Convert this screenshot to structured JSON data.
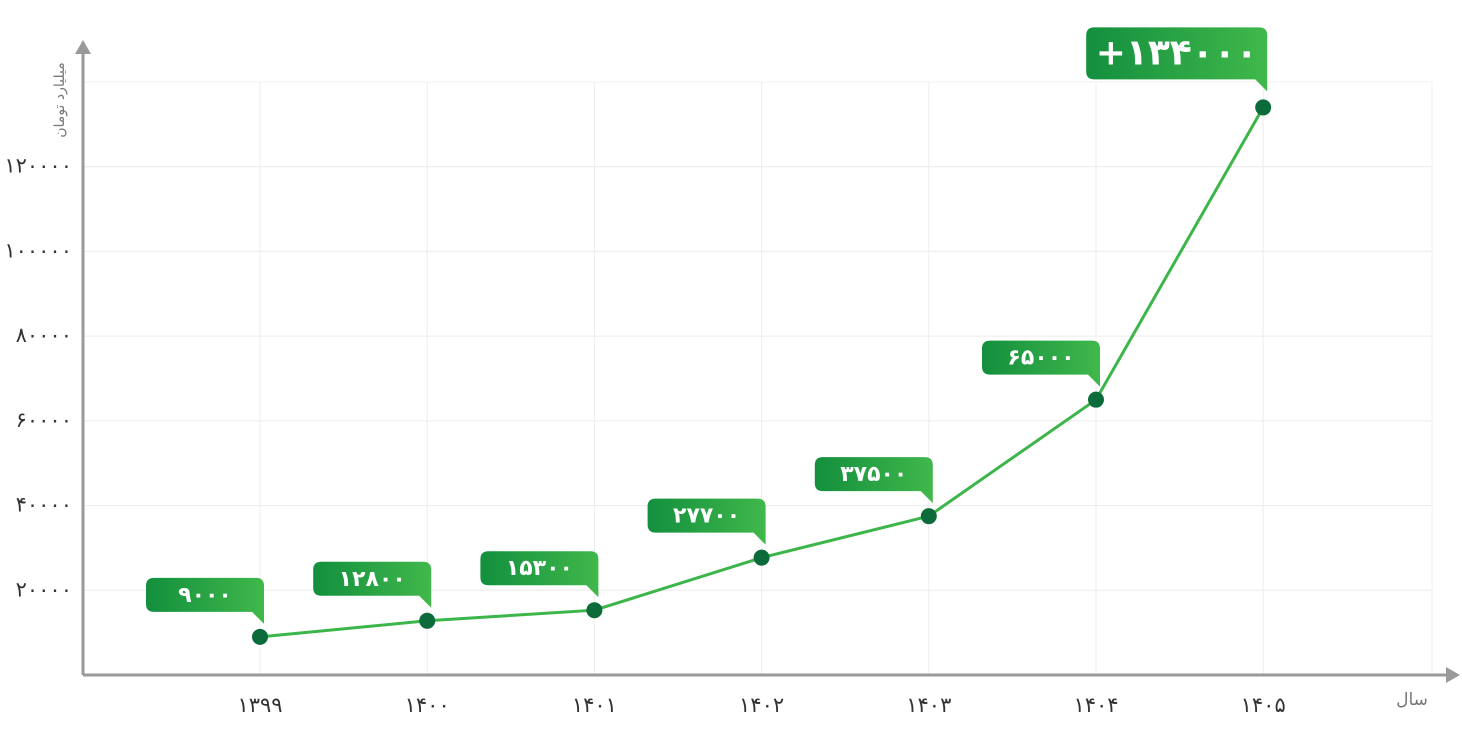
{
  "chart_data": {
    "type": "line",
    "y_axis_label": "میلیارد تومان",
    "x_axis_label": "سال",
    "categories": [
      "۱۳۹۹",
      "۱۴۰۰",
      "۱۴۰۱",
      "۱۴۰۲",
      "۱۴۰۳",
      "۱۴۰۴",
      "۱۴۰۵"
    ],
    "values": [
      9000,
      12800,
      15300,
      27700,
      37500,
      65000,
      134000
    ],
    "value_labels": [
      "۹۰۰۰",
      "۱۲۸۰۰",
      "۱۵۳۰۰",
      "۲۷۷۰۰",
      "۳۷۵۰۰",
      "۶۵۰۰۰",
      "+۱۳۴۰۰۰"
    ],
    "color": "#3cb54a",
    "marker_color": "#0b6b3a",
    "ylim": [
      0,
      140000
    ],
    "yticks": [
      {
        "value": 20000,
        "label": "۲۰۰۰۰"
      },
      {
        "value": 40000,
        "label": "۴۰۰۰۰"
      },
      {
        "value": 60000,
        "label": "۶۰۰۰۰"
      },
      {
        "value": 80000,
        "label": "۸۰۰۰۰"
      },
      {
        "value": 100000,
        "label": "۱۰۰۰۰۰"
      },
      {
        "value": 120000,
        "label": "۱۲۰۰۰۰"
      }
    ],
    "grid": true
  }
}
